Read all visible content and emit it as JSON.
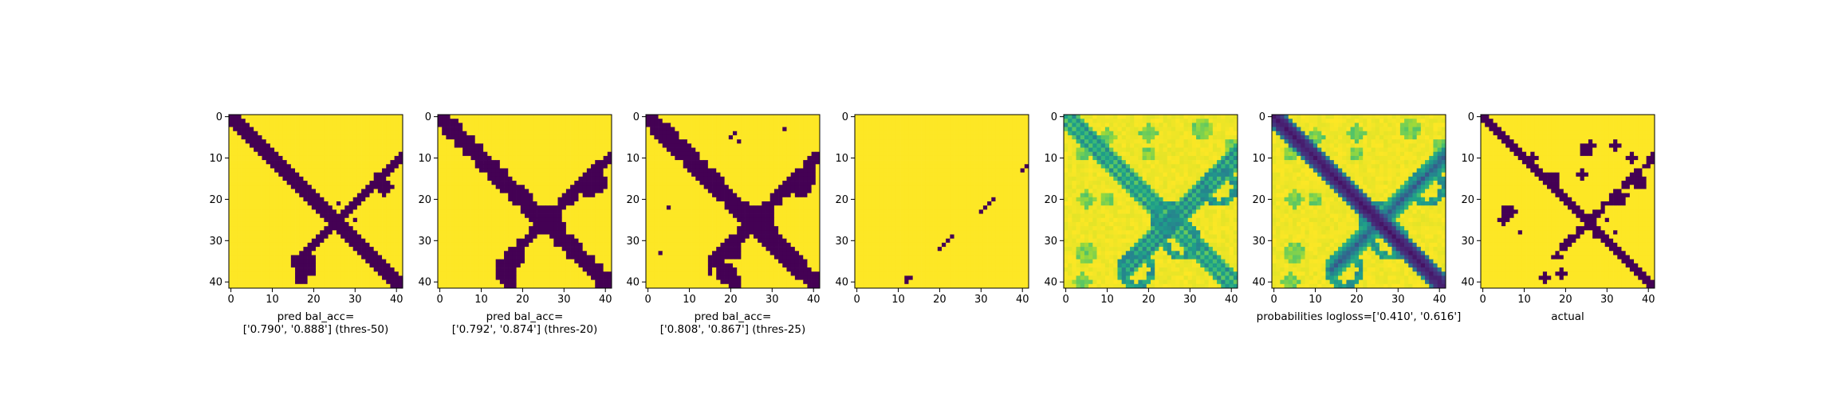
{
  "chart_data": [
    {
      "type": "heatmap",
      "title": "",
      "xlabel_lines": [
        "pred bal_acc=",
        "['0.790', '0.888'] (thres-50)"
      ],
      "xticks": [
        "0",
        "10",
        "20",
        "30",
        "40"
      ],
      "yticks": [
        "0",
        "10",
        "20",
        "30",
        "40"
      ],
      "grid_size": 42,
      "colormap": "viridis",
      "values": "binary",
      "diag_width": 2.6,
      "anti_width": 1.4,
      "anti_range": [
        16,
        41
      ],
      "blobs": [
        [
          37,
          17,
          2.2
        ],
        [
          36,
          15,
          1.6
        ],
        [
          26,
          21,
          1.0
        ],
        [
          30,
          25,
          1.0
        ],
        [
          24,
          24,
          1.0
        ],
        [
          18,
          36,
          3.0
        ],
        [
          17,
          39,
          2.0
        ],
        [
          16,
          35,
          2.0
        ]
      ]
    },
    {
      "type": "heatmap",
      "title": "",
      "xlabel_lines": [
        "pred bal_acc=",
        "['0.792', '0.874'] (thres-20)"
      ],
      "xticks": [
        "0",
        "10",
        "20",
        "30",
        "40"
      ],
      "yticks": [
        "0",
        "10",
        "20",
        "30",
        "40"
      ],
      "grid_size": 42,
      "colormap": "viridis",
      "values": "binary",
      "diag_width": 3.0,
      "anti_width": 2.0,
      "anti_range": [
        14,
        41
      ],
      "blobs": [
        [
          38,
          16,
          2.5
        ],
        [
          36,
          18,
          2.0
        ],
        [
          25,
          24,
          3.0
        ],
        [
          28,
          27,
          2.5
        ],
        [
          31,
          20,
          1.5
        ],
        [
          18,
          34,
          2.5
        ],
        [
          16,
          38,
          2.5
        ],
        [
          17,
          40,
          1.8
        ]
      ]
    },
    {
      "type": "heatmap",
      "title": "",
      "xlabel_lines": [
        "pred bal_acc=",
        "['0.808', '0.867'] (thres-25)"
      ],
      "xticks": [
        "0",
        "10",
        "20",
        "30",
        "40"
      ],
      "yticks": [
        "0",
        "10",
        "20",
        "30",
        "40"
      ],
      "grid_size": 42,
      "colormap": "viridis",
      "values": "binary",
      "diag_width": 3.2,
      "anti_width": 2.2,
      "anti_range": [
        15,
        41
      ],
      "blobs": [
        [
          37,
          17,
          2.5
        ],
        [
          39,
          15,
          1.8
        ],
        [
          27,
          25,
          3.2
        ],
        [
          29,
          28,
          2.5
        ],
        [
          21,
          33,
          2.0
        ],
        [
          19,
          38,
          2.5
        ],
        [
          21,
          40,
          2.0
        ],
        [
          21,
          4,
          1.0
        ],
        [
          20,
          5,
          0.8
        ],
        [
          22,
          6,
          0.6
        ],
        [
          22,
          6,
          0.8
        ],
        [
          5,
          22,
          0.8
        ],
        [
          3,
          33,
          0.6
        ],
        [
          33,
          3,
          0.6
        ]
      ]
    },
    {
      "type": "heatmap",
      "title": "",
      "xlabel_lines": [],
      "xticks": [
        "0",
        "10",
        "20",
        "30",
        "40"
      ],
      "yticks": [
        "0",
        "10",
        "20",
        "30",
        "40"
      ],
      "grid_size": 42,
      "colormap": "viridis",
      "values": "binary-sparse",
      "points": [
        [
          12,
          40
        ],
        [
          13,
          39
        ],
        [
          12,
          39
        ],
        [
          20,
          32
        ],
        [
          21,
          31
        ],
        [
          22,
          30
        ],
        [
          23,
          29
        ],
        [
          30,
          23
        ],
        [
          31,
          22
        ],
        [
          32,
          21
        ],
        [
          33,
          20
        ],
        [
          40,
          13
        ],
        [
          41,
          12
        ]
      ]
    },
    {
      "type": "heatmap",
      "title": "",
      "xlabel_lines": [],
      "xticks": [
        "0",
        "10",
        "20",
        "30",
        "40"
      ],
      "yticks": [
        "0",
        "10",
        "20",
        "30",
        "40"
      ],
      "grid_size": 42,
      "colormap": "viridis",
      "values": "probability",
      "style": "striped"
    },
    {
      "type": "heatmap",
      "title": "",
      "xlabel_lines": [
        "probabilities logloss=['0.410', '0.616']"
      ],
      "xticks": [
        "0",
        "10",
        "20",
        "30",
        "40"
      ],
      "yticks": [
        "0",
        "10",
        "20",
        "30",
        "40"
      ],
      "grid_size": 42,
      "colormap": "viridis",
      "values": "probability",
      "style": "smooth"
    },
    {
      "type": "heatmap",
      "title": "",
      "xlabel_lines": [
        "actual"
      ],
      "xticks": [
        "0",
        "10",
        "20",
        "30",
        "40"
      ],
      "yticks": [
        "0",
        "10",
        "20",
        "30",
        "40"
      ],
      "grid_size": 42,
      "colormap": "viridis",
      "values": "binary",
      "diag_width": 1.5,
      "anti_width": 1.1,
      "anti_range": [
        17,
        41
      ],
      "blobs": [
        [
          17,
          15,
          1.5
        ],
        [
          12,
          10,
          1.2
        ],
        [
          24,
          14,
          1.4
        ],
        [
          25,
          8,
          1.5
        ],
        [
          26,
          7,
          1.2
        ],
        [
          5,
          25,
          1.3
        ],
        [
          7,
          23,
          1.3
        ],
        [
          9,
          28,
          1.0
        ],
        [
          6,
          23,
          1.5
        ],
        [
          36,
          10,
          1.4
        ],
        [
          33,
          20,
          1.5
        ],
        [
          35,
          19,
          1.0
        ],
        [
          38,
          16,
          1.6
        ],
        [
          30,
          25,
          1.0
        ],
        [
          32,
          28,
          1.0
        ],
        [
          27,
          29,
          1.0
        ],
        [
          19,
          38,
          1.3
        ],
        [
          15,
          39,
          1.2
        ],
        [
          19,
          34,
          1.0
        ],
        [
          32,
          7,
          1.3
        ]
      ]
    }
  ]
}
